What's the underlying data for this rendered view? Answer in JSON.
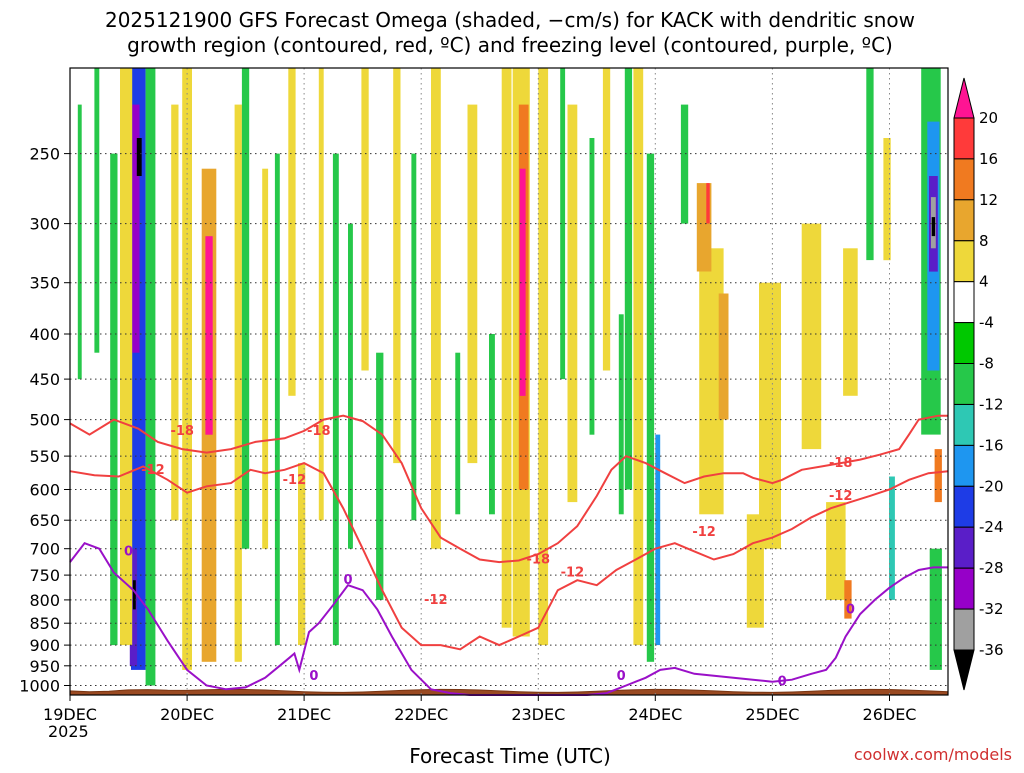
{
  "chart_data": {
    "type": "heatmap",
    "title_line1": "2025121900 GFS Forecast Omega (shaded, −cm/s) for KACK with dendritic snow",
    "title_line2": "growth region (contoured, red, ºC) and freezing level (contoured, purple, ºC)",
    "xlabel": "Forecast Time (UTC)",
    "credit": "coolwx.com/models",
    "x_start_year": "2025",
    "x_range_hours": [
      0,
      180
    ],
    "x_ticks": [
      {
        "label": "19DEC",
        "hour": 0
      },
      {
        "label": "20DEC",
        "hour": 24
      },
      {
        "label": "21DEC",
        "hour": 48
      },
      {
        "label": "22DEC",
        "hour": 72
      },
      {
        "label": "23DEC",
        "hour": 96
      },
      {
        "label": "24DEC",
        "hour": 120
      },
      {
        "label": "25DEC",
        "hour": 144
      },
      {
        "label": "26DEC",
        "hour": 168
      }
    ],
    "y_axis": "pressure (hPa), log scale, inverted",
    "y_range": [
      1025,
      200
    ],
    "y_ticks": [
      250,
      300,
      350,
      400,
      450,
      500,
      550,
      600,
      650,
      700,
      750,
      800,
      850,
      900,
      950,
      1000
    ],
    "colorbar": {
      "labels": [
        "20",
        "16",
        "12",
        "8",
        "4",
        "-4",
        "-8",
        "-12",
        "-16",
        "-20",
        "-24",
        "-28",
        "-32",
        "-36"
      ],
      "colors": [
        "#ff1493",
        "#ff3a3a",
        "#f07a20",
        "#e8a62e",
        "#eed83a",
        "#ffffff",
        "#00c800",
        "#26c84a",
        "#2ec8b4",
        "#1e96f0",
        "#1e3ce6",
        "#5a1ec8",
        "#9600c8",
        "#a0a0a0",
        "#000000"
      ]
    },
    "omega_cells": [
      {
        "h": 14.0,
        "w": 3.0,
        "p_top": 200,
        "p_bot": 960,
        "v": -20
      },
      {
        "h": 13.5,
        "w": 1.5,
        "p_top": 220,
        "p_bot": 420,
        "v": -28
      },
      {
        "h": 14.2,
        "w": 1.0,
        "p_top": 240,
        "p_bot": 265,
        "v": -36
      },
      {
        "h": 13.0,
        "w": 1.5,
        "p_top": 700,
        "p_bot": 950,
        "v": -24
      },
      {
        "h": 13.2,
        "w": 0.6,
        "p_top": 760,
        "p_bot": 820,
        "v": -36
      },
      {
        "h": 16.5,
        "w": 2.0,
        "p_top": 200,
        "p_bot": 1000,
        "v": -8
      },
      {
        "h": 9.0,
        "w": 1.5,
        "p_top": 250,
        "p_bot": 900,
        "v": -8
      },
      {
        "h": 5.5,
        "w": 1.0,
        "p_top": 200,
        "p_bot": 420,
        "v": -8
      },
      {
        "h": 2.0,
        "w": 0.8,
        "p_top": 220,
        "p_bot": 450,
        "v": -8
      },
      {
        "h": 11.5,
        "w": 2.5,
        "p_top": 200,
        "p_bot": 900,
        "v": 4
      },
      {
        "h": 21.5,
        "w": 1.5,
        "p_top": 220,
        "p_bot": 650,
        "v": 4
      },
      {
        "h": 24.0,
        "w": 2.0,
        "p_top": 200,
        "p_bot": 960,
        "v": 4
      },
      {
        "h": 28.5,
        "w": 3.0,
        "p_top": 260,
        "p_bot": 940,
        "v": 8
      },
      {
        "h": 28.5,
        "w": 1.5,
        "p_top": 310,
        "p_bot": 520,
        "v": 20
      },
      {
        "h": 34.5,
        "w": 1.5,
        "p_top": 220,
        "p_bot": 940,
        "v": 4
      },
      {
        "h": 36.0,
        "w": 1.5,
        "p_top": 200,
        "p_bot": 700,
        "v": -8
      },
      {
        "h": 40.0,
        "w": 1.2,
        "p_top": 260,
        "p_bot": 700,
        "v": 4
      },
      {
        "h": 42.5,
        "w": 1.0,
        "p_top": 250,
        "p_bot": 900,
        "v": -8
      },
      {
        "h": 45.5,
        "w": 1.5,
        "p_top": 200,
        "p_bot": 470,
        "v": 4
      },
      {
        "h": 47.5,
        "w": 1.5,
        "p_top": 560,
        "p_bot": 900,
        "v": 4
      },
      {
        "h": 51.5,
        "w": 1.0,
        "p_top": 200,
        "p_bot": 650,
        "v": 4
      },
      {
        "h": 54.5,
        "w": 1.2,
        "p_top": 250,
        "p_bot": 900,
        "v": -8
      },
      {
        "h": 57.5,
        "w": 1.0,
        "p_top": 300,
        "p_bot": 700,
        "v": -8
      },
      {
        "h": 60.5,
        "w": 1.5,
        "p_top": 200,
        "p_bot": 440,
        "v": 4
      },
      {
        "h": 63.5,
        "w": 1.5,
        "p_top": 420,
        "p_bot": 800,
        "v": -8
      },
      {
        "h": 67.0,
        "w": 1.5,
        "p_top": 200,
        "p_bot": 560,
        "v": 4
      },
      {
        "h": 70.5,
        "w": 1.0,
        "p_top": 250,
        "p_bot": 650,
        "v": -8
      },
      {
        "h": 75.0,
        "w": 2.0,
        "p_top": 200,
        "p_bot": 700,
        "v": 4
      },
      {
        "h": 79.5,
        "w": 1.0,
        "p_top": 420,
        "p_bot": 640,
        "v": -8
      },
      {
        "h": 82.5,
        "w": 2.0,
        "p_top": 220,
        "p_bot": 560,
        "v": 4
      },
      {
        "h": 86.5,
        "w": 1.2,
        "p_top": 400,
        "p_bot": 640,
        "v": -8
      },
      {
        "h": 89.5,
        "w": 2.0,
        "p_top": 200,
        "p_bot": 860,
        "v": 4
      },
      {
        "h": 92.5,
        "w": 3.5,
        "p_top": 200,
        "p_bot": 880,
        "v": 4
      },
      {
        "h": 93.0,
        "w": 2.0,
        "p_top": 220,
        "p_bot": 600,
        "v": 12
      },
      {
        "h": 92.8,
        "w": 1.2,
        "p_top": 260,
        "p_bot": 470,
        "v": 20
      },
      {
        "h": 97.0,
        "w": 2.0,
        "p_top": 200,
        "p_bot": 900,
        "v": 4
      },
      {
        "h": 101.0,
        "w": 1.0,
        "p_top": 200,
        "p_bot": 450,
        "v": -8
      },
      {
        "h": 103.0,
        "w": 2.0,
        "p_top": 220,
        "p_bot": 620,
        "v": 4
      },
      {
        "h": 107.0,
        "w": 1.0,
        "p_top": 240,
        "p_bot": 520,
        "v": -8
      },
      {
        "h": 110.0,
        "w": 1.5,
        "p_top": 200,
        "p_bot": 440,
        "v": 4
      },
      {
        "h": 113.0,
        "w": 1.0,
        "p_top": 380,
        "p_bot": 640,
        "v": -8
      },
      {
        "h": 116.5,
        "w": 2.0,
        "p_top": 200,
        "p_bot": 900,
        "v": 4
      },
      {
        "h": 119.0,
        "w": 1.5,
        "p_top": 250,
        "p_bot": 940,
        "v": -8
      },
      {
        "h": 120.5,
        "w": 1.0,
        "p_top": 520,
        "p_bot": 900,
        "v": -16
      },
      {
        "h": 114.5,
        "w": 1.5,
        "p_top": 200,
        "p_bot": 600,
        "v": -8
      },
      {
        "h": 126.0,
        "w": 1.5,
        "p_top": 220,
        "p_bot": 300,
        "v": -8
      },
      {
        "h": 131.5,
        "w": 5.0,
        "p_top": 320,
        "p_bot": 640,
        "v": 4
      },
      {
        "h": 130.0,
        "w": 3.0,
        "p_top": 270,
        "p_bot": 340,
        "v": 8
      },
      {
        "h": 134.0,
        "w": 2.0,
        "p_top": 360,
        "p_bot": 500,
        "v": 8
      },
      {
        "h": 130.8,
        "w": 0.7,
        "p_top": 270,
        "p_bot": 300,
        "v": 16
      },
      {
        "h": 143.5,
        "w": 4.5,
        "p_top": 350,
        "p_bot": 700,
        "v": 4
      },
      {
        "h": 140.5,
        "w": 3.5,
        "p_top": 640,
        "p_bot": 860,
        "v": 4
      },
      {
        "h": 152.0,
        "w": 4.0,
        "p_top": 300,
        "p_bot": 540,
        "v": 4
      },
      {
        "h": 157.0,
        "w": 4.0,
        "p_top": 620,
        "p_bot": 800,
        "v": 4
      },
      {
        "h": 160.0,
        "w": 3.0,
        "p_top": 320,
        "p_bot": 470,
        "v": 4
      },
      {
        "h": 159.5,
        "w": 1.5,
        "p_top": 760,
        "p_bot": 840,
        "v": 12
      },
      {
        "h": 164.0,
        "w": 1.5,
        "p_top": 200,
        "p_bot": 330,
        "v": -8
      },
      {
        "h": 167.5,
        "w": 1.5,
        "p_top": 240,
        "p_bot": 330,
        "v": 4
      },
      {
        "h": 168.5,
        "w": 1.2,
        "p_top": 580,
        "p_bot": 800,
        "v": -12
      },
      {
        "h": 176.5,
        "w": 4.0,
        "p_top": 200,
        "p_bot": 520,
        "v": -8
      },
      {
        "h": 177.0,
        "w": 2.5,
        "p_top": 230,
        "p_bot": 440,
        "v": -16
      },
      {
        "h": 177.0,
        "w": 1.8,
        "p_top": 265,
        "p_bot": 340,
        "v": -24
      },
      {
        "h": 177.0,
        "w": 1.0,
        "p_top": 280,
        "p_bot": 320,
        "v": -32
      },
      {
        "h": 177.0,
        "w": 0.7,
        "p_top": 295,
        "p_bot": 310,
        "v": -36
      },
      {
        "h": 178.0,
        "w": 1.5,
        "p_top": 540,
        "p_bot": 620,
        "v": 12
      },
      {
        "h": 177.5,
        "w": 2.5,
        "p_top": 700,
        "p_bot": 960,
        "v": -8
      }
    ],
    "dgz_contours": [
      {
        "label": "-18",
        "points": [
          [
            0,
            505
          ],
          [
            4,
            520
          ],
          [
            9,
            500
          ],
          [
            14,
            512
          ],
          [
            18,
            530
          ],
          [
            23,
            540
          ],
          [
            28,
            545
          ],
          [
            33,
            540
          ],
          [
            38,
            530
          ],
          [
            44,
            525
          ],
          [
            48,
            515
          ],
          [
            52,
            500
          ],
          [
            56,
            495
          ],
          [
            60,
            502
          ],
          [
            64,
            520
          ],
          [
            68,
            560
          ],
          [
            72,
            630
          ],
          [
            76,
            680
          ],
          [
            80,
            700
          ],
          [
            84,
            720
          ],
          [
            88,
            725
          ],
          [
            92,
            722
          ],
          [
            96,
            710
          ],
          [
            100,
            690
          ],
          [
            104,
            660
          ],
          [
            108,
            610
          ],
          [
            111,
            570
          ],
          [
            114,
            550
          ],
          [
            118,
            560
          ],
          [
            122,
            575
          ],
          [
            126,
            590
          ],
          [
            130,
            580
          ],
          [
            134,
            575
          ],
          [
            138,
            575
          ],
          [
            140,
            582
          ],
          [
            144,
            590
          ],
          [
            146,
            585
          ],
          [
            150,
            570
          ],
          [
            154,
            565
          ],
          [
            158,
            560
          ],
          [
            162,
            555
          ],
          [
            166,
            548
          ],
          [
            170,
            540
          ],
          [
            172,
            520
          ],
          [
            174,
            500
          ],
          [
            178,
            495
          ],
          [
            180,
            495
          ]
        ],
        "labels": [
          {
            "text": "-18",
            "h": 23,
            "p": 515
          },
          {
            "text": "-18",
            "h": 51,
            "p": 515
          },
          {
            "text": "-18",
            "h": 96,
            "p": 720
          },
          {
            "text": "-18",
            "h": 158,
            "p": 560
          }
        ]
      },
      {
        "label": "-12",
        "points": [
          [
            0,
            572
          ],
          [
            5,
            578
          ],
          [
            10,
            580
          ],
          [
            15,
            565
          ],
          [
            20,
            585
          ],
          [
            24,
            605
          ],
          [
            28,
            595
          ],
          [
            33,
            590
          ],
          [
            37,
            570
          ],
          [
            40,
            575
          ],
          [
            44,
            570
          ],
          [
            48,
            560
          ],
          [
            52,
            575
          ],
          [
            56,
            630
          ],
          [
            60,
            700
          ],
          [
            64,
            780
          ],
          [
            68,
            860
          ],
          [
            72,
            900
          ],
          [
            76,
            900
          ],
          [
            80,
            910
          ],
          [
            84,
            880
          ],
          [
            88,
            900
          ],
          [
            92,
            880
          ],
          [
            96,
            860
          ],
          [
            100,
            780
          ],
          [
            104,
            760
          ],
          [
            108,
            770
          ],
          [
            112,
            740
          ],
          [
            116,
            720
          ],
          [
            120,
            700
          ],
          [
            124,
            690
          ],
          [
            128,
            705
          ],
          [
            132,
            720
          ],
          [
            136,
            710
          ],
          [
            140,
            690
          ],
          [
            144,
            680
          ],
          [
            148,
            665
          ],
          [
            152,
            645
          ],
          [
            156,
            630
          ],
          [
            160,
            620
          ],
          [
            164,
            610
          ],
          [
            168,
            600
          ],
          [
            172,
            585
          ],
          [
            176,
            575
          ],
          [
            180,
            572
          ]
        ],
        "labels": [
          {
            "text": "-12",
            "h": 17,
            "p": 570
          },
          {
            "text": "-12",
            "h": 46,
            "p": 585
          },
          {
            "text": "-12",
            "h": 75,
            "p": 800
          },
          {
            "text": "-12",
            "h": 103,
            "p": 745
          },
          {
            "text": "-12",
            "h": 130,
            "p": 670
          },
          {
            "text": "-12",
            "h": 158,
            "p": 610
          }
        ]
      }
    ],
    "freezing_contours": [
      {
        "label": "0",
        "points": [
          [
            0,
            725
          ],
          [
            3,
            690
          ],
          [
            6,
            700
          ],
          [
            9,
            745
          ],
          [
            13,
            780
          ],
          [
            16,
            820
          ],
          [
            20,
            890
          ],
          [
            24,
            960
          ],
          [
            28,
            1000
          ],
          [
            32,
            1010
          ],
          [
            36,
            1005
          ],
          [
            40,
            980
          ],
          [
            43,
            950
          ],
          [
            45,
            930
          ],
          [
            46,
            920
          ],
          [
            47,
            960
          ],
          [
            49,
            870
          ],
          [
            51,
            850
          ],
          [
            54,
            810
          ],
          [
            57,
            770
          ],
          [
            60,
            780
          ],
          [
            63,
            820
          ],
          [
            66,
            880
          ],
          [
            70,
            960
          ],
          [
            74,
            1010
          ],
          [
            78,
            1020
          ],
          [
            82,
            1025
          ],
          [
            86,
            1025
          ],
          [
            90,
            1025
          ],
          [
            94,
            1025
          ],
          [
            100,
            1025
          ],
          [
            106,
            1025
          ],
          [
            110,
            1020
          ],
          [
            114,
            1000
          ],
          [
            118,
            980
          ],
          [
            121,
            960
          ],
          [
            124,
            955
          ],
          [
            128,
            970
          ],
          [
            132,
            975
          ],
          [
            136,
            980
          ],
          [
            140,
            985
          ],
          [
            144,
            990
          ],
          [
            148,
            985
          ],
          [
            152,
            970
          ],
          [
            155,
            960
          ],
          [
            157,
            930
          ],
          [
            159,
            880
          ],
          [
            162,
            830
          ],
          [
            165,
            800
          ],
          [
            168,
            775
          ],
          [
            171,
            755
          ],
          [
            174,
            740
          ],
          [
            177,
            735
          ],
          [
            180,
            735
          ]
        ],
        "labels": [
          {
            "text": "0",
            "h": 12,
            "p": 705
          },
          {
            "text": "0",
            "h": 50,
            "p": 975
          },
          {
            "text": "0",
            "h": 57,
            "p": 760
          },
          {
            "text": "0",
            "h": 113,
            "p": 975
          },
          {
            "text": "0",
            "h": 146,
            "p": 990
          },
          {
            "text": "0",
            "h": 160,
            "p": 820
          }
        ]
      }
    ],
    "terrain_pressure": 1000
  }
}
